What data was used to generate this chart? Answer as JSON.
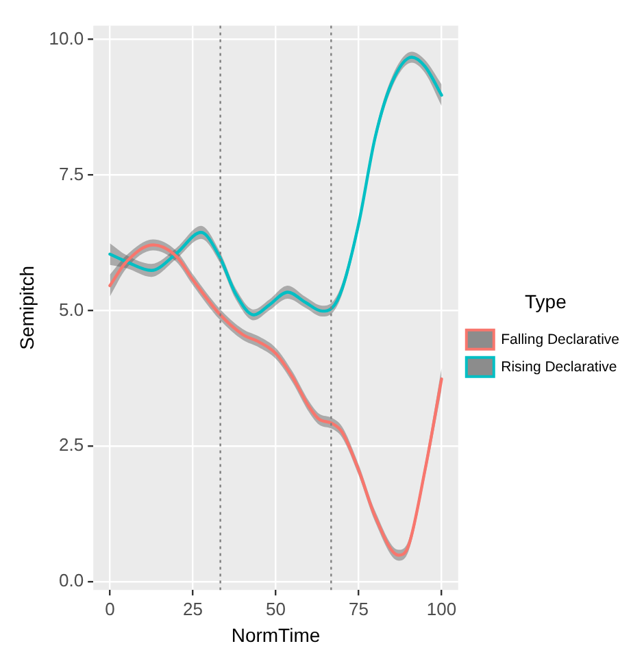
{
  "chart_data": {
    "type": "line",
    "xlabel": "NormTime",
    "ylabel": "Semipitch",
    "legend_title": "Type",
    "legend": "right",
    "grid": true,
    "marker": "none",
    "line_style": "solid",
    "xlim": [
      -5,
      105
    ],
    "xticks": [
      0,
      25,
      50,
      75,
      100
    ],
    "ylim": [
      -0.15,
      10.25
    ],
    "yticks": [
      {
        "value": 0,
        "label": "0.0"
      },
      {
        "value": 2.5,
        "label": "2.5"
      },
      {
        "value": 5,
        "label": "5.0"
      },
      {
        "value": 7.5,
        "label": "7.5"
      },
      {
        "value": 10,
        "label": "10.0"
      }
    ],
    "ref_lines": [
      {
        "axis": "x",
        "value": 33.3,
        "color": "#808080",
        "line_style": "dotted"
      },
      {
        "axis": "x",
        "value": 66.7,
        "color": "#808080",
        "line_style": "dotted"
      }
    ],
    "series": [
      {
        "name": "Falling Declarative",
        "color": "#f8766d",
        "x": [
          0,
          5,
          13,
          20,
          25,
          33,
          40,
          45,
          50,
          55,
          60,
          63,
          67,
          70,
          75,
          80,
          87,
          90,
          95,
          100
        ],
        "values": [
          5.46,
          5.9,
          6.21,
          6.0,
          5.57,
          4.94,
          4.56,
          4.42,
          4.21,
          3.78,
          3.23,
          3.0,
          2.92,
          2.76,
          2.06,
          1.2,
          0.49,
          0.66,
          2.06,
          3.74
        ],
        "lower": [
          5.26,
          5.78,
          6.11,
          5.9,
          5.47,
          4.84,
          4.46,
          4.32,
          4.11,
          3.68,
          3.13,
          2.9,
          2.82,
          2.66,
          1.96,
          1.1,
          0.39,
          0.56,
          1.94,
          3.54
        ],
        "upper": [
          5.66,
          6.02,
          6.31,
          6.1,
          5.67,
          5.04,
          4.66,
          4.52,
          4.31,
          3.88,
          3.33,
          3.1,
          3.02,
          2.86,
          2.16,
          1.3,
          0.59,
          0.76,
          2.18,
          3.94
        ]
      },
      {
        "name": "Rising Declarative",
        "color": "#00bfc4",
        "x": [
          0,
          5,
          12.5,
          20,
          27.5,
          33,
          38,
          43.4,
          48,
          53.6,
          59,
          64,
          67,
          70,
          75,
          80,
          85,
          91,
          95,
          100
        ],
        "values": [
          6.04,
          5.9,
          5.74,
          6.05,
          6.44,
          6.0,
          5.3,
          4.92,
          5.1,
          5.34,
          5.15,
          4.99,
          5.05,
          5.4,
          6.6,
          8.2,
          9.2,
          9.67,
          9.5,
          8.97
        ],
        "lower": [
          5.84,
          5.78,
          5.62,
          5.95,
          6.32,
          5.9,
          5.2,
          4.82,
          5.0,
          5.22,
          5.05,
          4.89,
          4.95,
          5.3,
          6.5,
          8.1,
          9.1,
          9.57,
          9.38,
          8.77
        ],
        "upper": [
          6.24,
          6.02,
          5.86,
          6.15,
          6.56,
          6.1,
          5.4,
          5.02,
          5.2,
          5.46,
          5.25,
          5.09,
          5.15,
          5.5,
          6.7,
          8.3,
          9.3,
          9.77,
          9.62,
          9.17
        ]
      }
    ]
  }
}
